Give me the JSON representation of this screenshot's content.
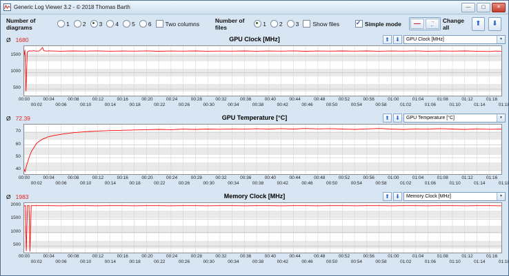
{
  "window": {
    "title": "Generic Log Viewer 3.2 - © 2018 Thomas Barth",
    "minimize": "—",
    "maximize": "▢",
    "close": "✕"
  },
  "toolbar": {
    "diagrams_label": "Number of diagrams",
    "diagram_options": [
      "1",
      "2",
      "3",
      "4",
      "5",
      "6"
    ],
    "diagrams_selected": "3",
    "two_columns_label": "Two columns",
    "files_label": "Number of files",
    "file_options": [
      "1",
      "2",
      "3"
    ],
    "files_selected": "1",
    "show_files_label": "Show files",
    "simple_mode_label": "Simple mode",
    "change_all_label": "Change all",
    "up_arrow": "⬆",
    "down_arrow": "⬇"
  },
  "chart_data": {
    "type": "line",
    "x_max": 78,
    "grid": true,
    "x_ticks_minutes": [
      0,
      2,
      4,
      6,
      8,
      10,
      12,
      14,
      16,
      18,
      20,
      22,
      24,
      26,
      28,
      30,
      32,
      34,
      36,
      38,
      40,
      42,
      44,
      46,
      48,
      50,
      52,
      54,
      56,
      58,
      60,
      62,
      64,
      66,
      68,
      70,
      72,
      74,
      76,
      78
    ],
    "x_tick_labels": [
      "00:00",
      "00:02",
      "00:04",
      "00:06",
      "00:08",
      "00:10",
      "00:12",
      "00:14",
      "00:16",
      "00:18",
      "00:20",
      "00:22",
      "00:24",
      "00:26",
      "00:28",
      "00:30",
      "00:32",
      "00:34",
      "00:36",
      "00:38",
      "00:40",
      "00:42",
      "00:44",
      "00:46",
      "00:48",
      "00:50",
      "00:52",
      "00:54",
      "00:56",
      "00:58",
      "01:00",
      "01:02",
      "01:04",
      "01:06",
      "01:08",
      "01:10",
      "01:12",
      "01:14",
      "01:16",
      "01:18"
    ],
    "charts": [
      {
        "avg_symbol": "Ø",
        "avg": "1680",
        "title": "GPU Clock [MHz]",
        "dropdown_label": "GPU Clock [MHz]",
        "ylim": [
          300,
          1800
        ],
        "yticks": [
          500,
          1000,
          1500
        ],
        "ytick_labels": [
          "500",
          "1000",
          "1500"
        ],
        "line_color": "#ff0000",
        "points": [
          [
            0,
            1520
          ],
          [
            0.12,
            1688
          ],
          [
            0.3,
            432
          ],
          [
            0.5,
            1612
          ],
          [
            0.8,
            1656
          ],
          [
            1.2,
            1649
          ],
          [
            1.6,
            1660
          ],
          [
            2,
            1648
          ],
          [
            2.5,
            1654
          ],
          [
            3,
            1757
          ],
          [
            3.2,
            1662
          ],
          [
            3.6,
            1650
          ],
          [
            4,
            1656
          ],
          [
            6,
            1646
          ],
          [
            8,
            1655
          ],
          [
            10,
            1648
          ],
          [
            12,
            1657
          ],
          [
            14,
            1645
          ],
          [
            16,
            1653
          ],
          [
            18,
            1648
          ],
          [
            20,
            1656
          ],
          [
            22,
            1644
          ],
          [
            24,
            1652
          ],
          [
            26,
            1648
          ],
          [
            28,
            1655
          ],
          [
            30,
            1645
          ],
          [
            32,
            1651
          ],
          [
            34,
            1647
          ],
          [
            36,
            1655
          ],
          [
            38,
            1646
          ],
          [
            40,
            1653
          ],
          [
            42,
            1648
          ],
          [
            44,
            1656
          ],
          [
            46,
            1644
          ],
          [
            48,
            1652
          ],
          [
            50,
            1647
          ],
          [
            52,
            1654
          ],
          [
            54,
            1648
          ],
          [
            56,
            1655
          ],
          [
            58,
            1645
          ],
          [
            60,
            1652
          ],
          [
            62,
            1648
          ],
          [
            64,
            1656
          ],
          [
            66,
            1645
          ],
          [
            68,
            1652
          ],
          [
            70,
            1648
          ],
          [
            72,
            1655
          ],
          [
            74,
            1646
          ],
          [
            76,
            1638
          ],
          [
            77,
            1650
          ],
          [
            78,
            1646
          ]
        ]
      },
      {
        "avg_symbol": "Ø",
        "avg": "72.39",
        "title": "GPU Temperature [°C]",
        "dropdown_label": "GPU Temperature [°C]",
        "ylim": [
          37,
          76
        ],
        "yticks": [
          40,
          50,
          60,
          70
        ],
        "ytick_labels": [
          "40",
          "50",
          "60",
          "70"
        ],
        "line_color": "#ff0000",
        "points": [
          [
            0,
            41
          ],
          [
            0.15,
            39
          ],
          [
            0.4,
            44
          ],
          [
            0.8,
            50
          ],
          [
            1.2,
            55
          ],
          [
            1.6,
            58
          ],
          [
            2,
            61
          ],
          [
            2.5,
            63
          ],
          [
            3,
            64.5
          ],
          [
            3.5,
            65.5
          ],
          [
            4,
            66.5
          ],
          [
            5,
            67.5
          ],
          [
            6,
            68.3
          ],
          [
            7,
            69
          ],
          [
            8,
            69.6
          ],
          [
            9,
            70
          ],
          [
            10,
            70.4
          ],
          [
            12,
            70.9
          ],
          [
            14,
            71.3
          ],
          [
            16,
            71.5
          ],
          [
            18,
            71.8
          ],
          [
            20,
            72
          ],
          [
            22,
            72.2
          ],
          [
            24,
            72
          ],
          [
            26,
            72.4
          ],
          [
            28,
            72.2
          ],
          [
            30,
            72.5
          ],
          [
            32,
            72.3
          ],
          [
            34,
            72.6
          ],
          [
            36,
            72.4
          ],
          [
            38,
            72.7
          ],
          [
            40,
            72.5
          ],
          [
            42,
            72.8
          ],
          [
            44,
            72.5
          ],
          [
            46,
            72.9
          ],
          [
            48,
            72.6
          ],
          [
            50,
            72.8
          ],
          [
            52,
            72.5
          ],
          [
            54,
            72.2
          ],
          [
            56,
            72.6
          ],
          [
            58,
            72.9
          ],
          [
            60,
            72.5
          ],
          [
            62,
            72.2
          ],
          [
            64,
            72.6
          ],
          [
            66,
            72.4
          ],
          [
            68,
            72.8
          ],
          [
            70,
            72.5
          ],
          [
            72,
            72.2
          ],
          [
            74,
            72.6
          ],
          [
            76,
            72.3
          ],
          [
            78,
            72.5
          ]
        ]
      },
      {
        "avg_symbol": "Ø",
        "avg": "1983",
        "title": "Memory Clock [MHz]",
        "dropdown_label": "Memory Clock [MHz]",
        "ylim": [
          250,
          2100
        ],
        "yticks": [
          500,
          1000,
          1500,
          2000
        ],
        "ytick_labels": [
          "500",
          "1000",
          "1500",
          "2000"
        ],
        "line_color": "#ff0000",
        "points": [
          [
            0,
            1985
          ],
          [
            0.2,
            2005
          ],
          [
            0.35,
            310
          ],
          [
            0.55,
            2005
          ],
          [
            0.8,
            2005
          ],
          [
            0.95,
            295
          ],
          [
            1.15,
            2005
          ],
          [
            2,
            2005
          ],
          [
            4,
            2005
          ],
          [
            6,
            2000
          ],
          [
            8,
            2005
          ],
          [
            10,
            2005
          ],
          [
            12,
            2000
          ],
          [
            14,
            2005
          ],
          [
            16,
            2005
          ],
          [
            18,
            2000
          ],
          [
            20,
            2005
          ],
          [
            22,
            2005
          ],
          [
            24,
            2000
          ],
          [
            26,
            2005
          ],
          [
            28,
            2005
          ],
          [
            30,
            2000
          ],
          [
            32,
            2005
          ],
          [
            34,
            2005
          ],
          [
            36,
            2000
          ],
          [
            38,
            2005
          ],
          [
            40,
            2005
          ],
          [
            42,
            2000
          ],
          [
            44,
            2005
          ],
          [
            46,
            2005
          ],
          [
            48,
            2000
          ],
          [
            50,
            2005
          ],
          [
            52,
            2005
          ],
          [
            54,
            2000
          ],
          [
            56,
            2005
          ],
          [
            58,
            2005
          ],
          [
            60,
            2000
          ],
          [
            62,
            2005
          ],
          [
            64,
            2005
          ],
          [
            66,
            2000
          ],
          [
            68,
            2005
          ],
          [
            70,
            2005
          ],
          [
            72,
            2000
          ],
          [
            74,
            2005
          ],
          [
            76,
            2005
          ],
          [
            78,
            2000
          ]
        ]
      }
    ]
  }
}
